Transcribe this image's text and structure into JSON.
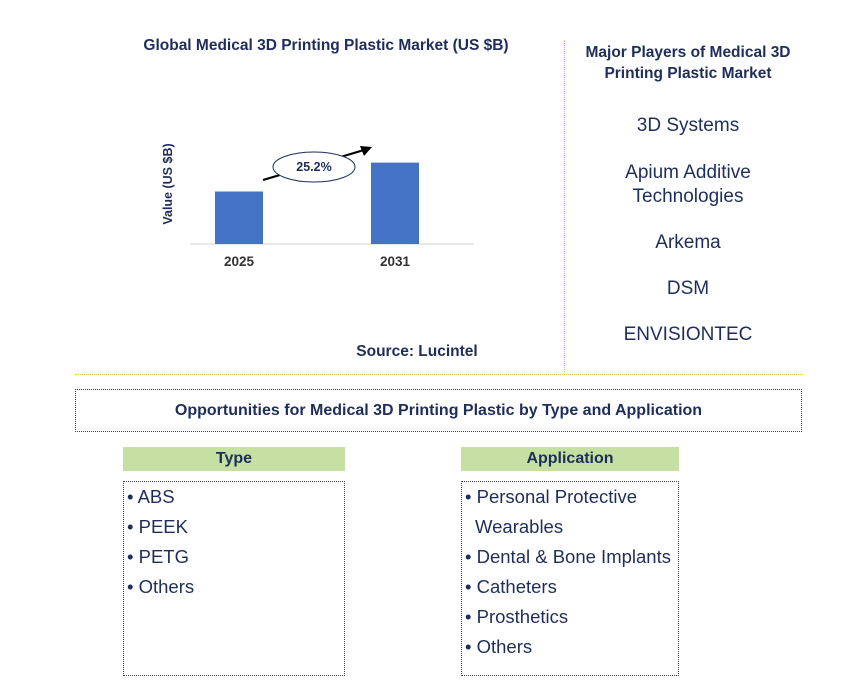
{
  "chart": {
    "title": "Global Medical 3D Printing Plastic Market (US $B)",
    "source": "Source: Lucintel"
  },
  "chart_data": {
    "type": "bar",
    "categories": [
      "2025",
      "2031"
    ],
    "values": [
      1.0,
      1.55
    ],
    "ylabel": "Value (US $B)",
    "ylim": [
      0,
      1.6
    ],
    "bar_color": "#4472c4",
    "annotation": "25.2%",
    "grid": false,
    "legend": "none"
  },
  "players": {
    "title": "Major Players of Medical 3D Printing Plastic Market",
    "items": [
      "3D Systems",
      "Apium Additive Technologies",
      "Arkema",
      "DSM",
      "ENVISIONTEC"
    ]
  },
  "opportunities": {
    "title": "Opportunities for Medical 3D Printing Plastic by Type and Application"
  },
  "type": {
    "header": "Type",
    "items": [
      "• ABS",
      "• PEEK",
      "• PETG",
      "• Others"
    ]
  },
  "application": {
    "header": "Application",
    "items": [
      "• Personal Protective",
      "Wearables",
      "• Dental & Bone Implants",
      "• Catheters",
      "• Prosthetics",
      "• Others"
    ]
  },
  "colors": {
    "header_bg": "#c6e0a4",
    "text": "#1f2d5a",
    "divider": "#e0c040"
  }
}
